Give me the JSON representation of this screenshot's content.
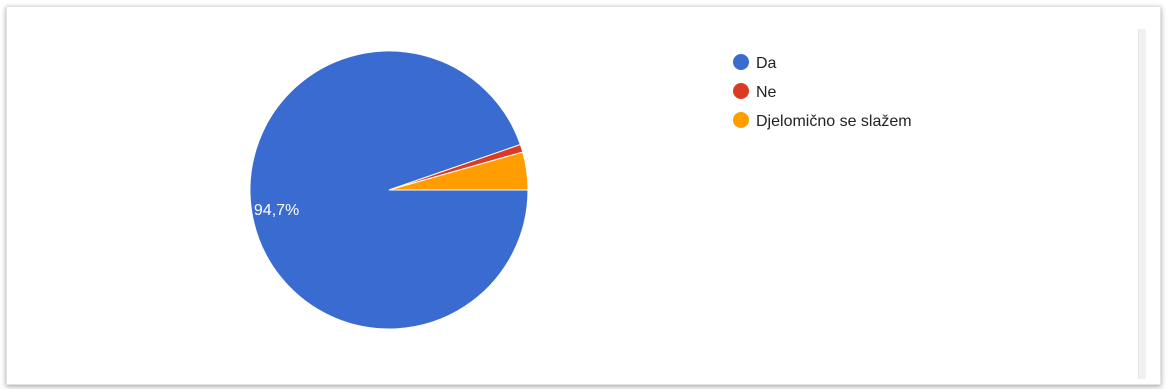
{
  "chart_data": {
    "type": "pie",
    "categories": [
      "Da",
      "Ne",
      "Djelomično se slažem"
    ],
    "values": [
      94.7,
      0.9,
      4.4
    ],
    "colors": [
      "#3a6bd0",
      "#db3b24",
      "#ff9d00"
    ],
    "data_labels": [
      "94,7%",
      "",
      ""
    ],
    "legend_placement": "top-right"
  }
}
